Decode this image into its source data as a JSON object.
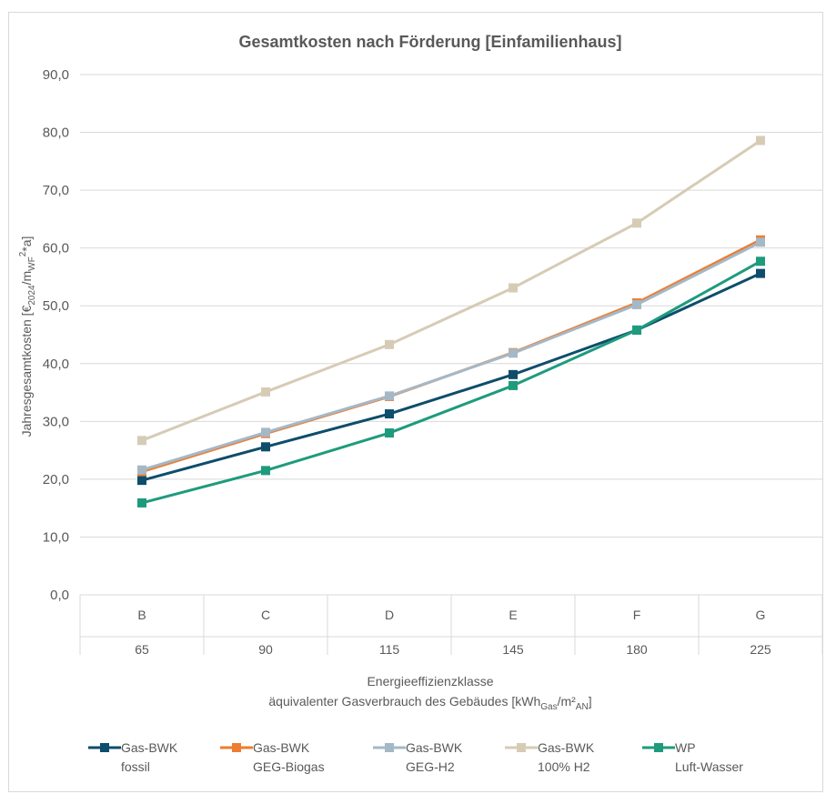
{
  "chart_data": {
    "type": "line",
    "title": "Gesamtkosten nach Förderung [Einfamilienhaus]",
    "ylabel": {
      "main": "Jahresgesamtkosten [€",
      "sub1": "2024",
      "mid": "/m",
      "sub2": "WF",
      "sup": "2",
      "tail": "*a]"
    },
    "xlabel": {
      "line1": "Energieeffizienzklasse",
      "line2_main": "äquivalenter Gasverbrauch des Gebäudes [kWh",
      "line2_sub1": "Gas",
      "line2_mid": "/m²",
      "line2_sub2": "AN",
      "line2_tail": "]"
    },
    "ylim": [
      0,
      90
    ],
    "yticks": [
      "0,0",
      "10,0",
      "20,0",
      "30,0",
      "40,0",
      "50,0",
      "60,0",
      "70,0",
      "80,0",
      "90,0"
    ],
    "categories": [
      "B",
      "C",
      "D",
      "E",
      "F",
      "G"
    ],
    "categories_row2": [
      "65",
      "90",
      "115",
      "145",
      "180",
      "225"
    ],
    "series": [
      {
        "name_line1": "Gas-BWK",
        "name_line2": "fossil",
        "color": "#0e4d6b",
        "values": [
          19.8,
          25.6,
          31.3,
          38.1,
          45.8,
          55.6
        ]
      },
      {
        "name_line1": "Gas-BWK",
        "name_line2": "GEG-Biogas",
        "color": "#ed7d31",
        "values": [
          21.3,
          27.9,
          34.3,
          41.9,
          50.5,
          61.4
        ]
      },
      {
        "name_line1": "Gas-BWK",
        "name_line2": "GEG-H2",
        "color": "#a5b8c6",
        "values": [
          21.6,
          28.1,
          34.4,
          41.8,
          50.2,
          61.0
        ]
      },
      {
        "name_line1": "Gas-BWK",
        "name_line2": "100% H2",
        "color": "#d6cbb5",
        "values": [
          26.7,
          35.1,
          43.3,
          53.1,
          64.3,
          78.6
        ]
      },
      {
        "name_line1": "WP",
        "name_line2": "Luft-Wasser",
        "color": "#1e9b7d",
        "values": [
          15.9,
          21.5,
          28.0,
          36.2,
          45.8,
          57.7
        ]
      }
    ]
  }
}
